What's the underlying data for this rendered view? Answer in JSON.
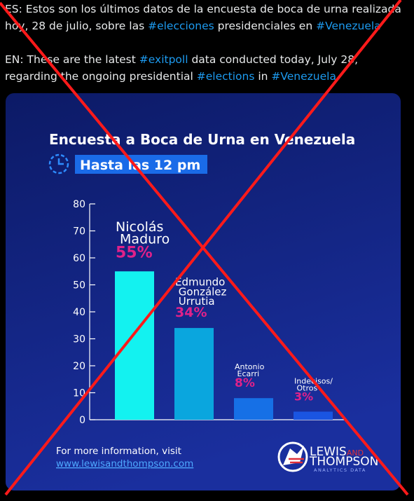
{
  "tweet": {
    "es": [
      "ES: Estos son los últimos datos de la encuesta de boca de urna realizada hoy, 28 de julio, sobre las ",
      "#elecciones",
      " presidenciales en ",
      "#Venezuela"
    ],
    "en": [
      "EN: These are the latest ",
      "#exitpoll",
      " data conducted today, July 28, regarding the ongoing presidential ",
      "#elections",
      " in ",
      "#Venezuela"
    ]
  },
  "chart_data": {
    "type": "bar",
    "title": "Encuesta a Boca de Urna en Venezuela",
    "subtitle": "Hasta las 12 pm",
    "categories": [
      "Nicolás Maduro",
      "Edmundo González Urrutia",
      "Antonio Ecarri",
      "Indecisos/ Otros"
    ],
    "values": [
      55,
      34,
      8,
      3
    ],
    "value_labels": [
      "55%",
      "34%",
      "8%",
      "3%"
    ],
    "colors": [
      "#13f2f0",
      "#0aa6de",
      "#1670e6",
      "#1a55e2"
    ],
    "ylim": [
      0,
      80
    ],
    "yticks": [
      0,
      10,
      20,
      30,
      40,
      50,
      60,
      70,
      80
    ],
    "grid": false
  },
  "footer": {
    "info": "For more information, visit",
    "url": "www.lewisandthompson.com",
    "logo": {
      "name1": "LEWIS",
      "and": "AND",
      "name2": "THOMPSON",
      "tagline": "ANALYTICS DATA"
    }
  }
}
